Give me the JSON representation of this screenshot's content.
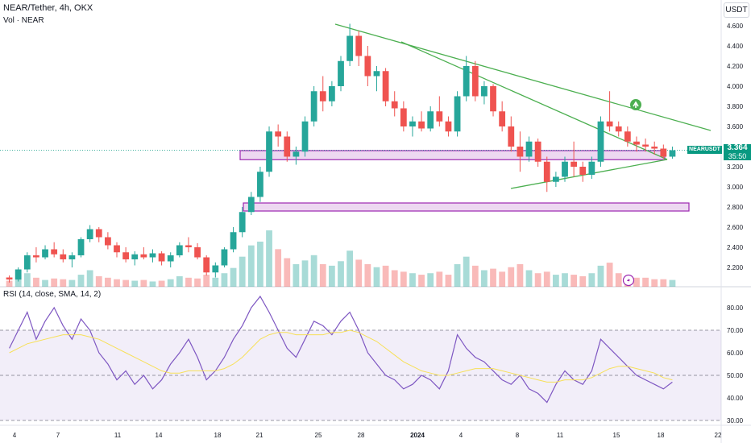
{
  "header": {
    "title": "NEAR/Tether, 4h, OKX",
    "volume_label": "Vol · NEAR",
    "currency": "USDT",
    "rsi_label": "RSI (14, close, SMA, 14, 2)"
  },
  "price_tag": {
    "symbol": "NEARUSDT",
    "price": "3.364",
    "countdown": "35:50"
  },
  "chart_data": [
    {
      "type": "candlestick",
      "title": "NEAR/Tether, 4h, OKX",
      "ylabel": "USDT",
      "ylim": [
        2.0,
        4.7
      ],
      "yticks": [
        "4.600",
        "4.400",
        "4.200",
        "4.000",
        "3.800",
        "3.600",
        "3.400",
        "3.200",
        "3.000",
        "2.800",
        "2.600",
        "2.400",
        "2.200"
      ],
      "xticks": [
        "4",
        "7",
        "11",
        "14",
        "18",
        "21",
        "25",
        "28",
        "2024",
        "4",
        "8",
        "11",
        "15",
        "18",
        "22"
      ],
      "series": [
        {
          "kind": "candles",
          "values": [
            [
              2.1,
              2.12,
              2.05,
              2.08
            ],
            [
              2.08,
              2.2,
              2.06,
              2.18
            ],
            [
              2.18,
              2.35,
              2.15,
              2.32
            ],
            [
              2.32,
              2.4,
              2.25,
              2.3
            ],
            [
              2.3,
              2.42,
              2.28,
              2.38
            ],
            [
              2.38,
              2.45,
              2.3,
              2.33
            ],
            [
              2.33,
              2.38,
              2.25,
              2.28
            ],
            [
              2.28,
              2.35,
              2.2,
              2.32
            ],
            [
              2.32,
              2.5,
              2.3,
              2.48
            ],
            [
              2.48,
              2.62,
              2.45,
              2.58
            ],
            [
              2.58,
              2.6,
              2.45,
              2.5
            ],
            [
              2.5,
              2.55,
              2.38,
              2.42
            ],
            [
              2.42,
              2.45,
              2.3,
              2.35
            ],
            [
              2.35,
              2.4,
              2.25,
              2.28
            ],
            [
              2.28,
              2.36,
              2.22,
              2.33
            ],
            [
              2.33,
              2.4,
              2.28,
              2.3
            ],
            [
              2.3,
              2.38,
              2.25,
              2.34
            ],
            [
              2.34,
              2.36,
              2.22,
              2.26
            ],
            [
              2.26,
              2.35,
              2.2,
              2.32
            ],
            [
              2.32,
              2.45,
              2.3,
              2.42
            ],
            [
              2.42,
              2.5,
              2.35,
              2.4
            ],
            [
              2.4,
              2.44,
              2.28,
              2.3
            ],
            [
              2.3,
              2.32,
              2.12,
              2.15
            ],
            [
              2.15,
              2.25,
              2.1,
              2.22
            ],
            [
              2.22,
              2.4,
              2.2,
              2.38
            ],
            [
              2.38,
              2.6,
              2.35,
              2.55
            ],
            [
              2.55,
              2.8,
              2.5,
              2.75
            ],
            [
              2.75,
              2.95,
              2.72,
              2.9
            ],
            [
              2.9,
              3.2,
              2.85,
              3.15
            ],
            [
              3.15,
              3.6,
              3.1,
              3.55
            ],
            [
              3.55,
              3.62,
              3.4,
              3.5
            ],
            [
              3.5,
              3.55,
              3.25,
              3.3
            ],
            [
              3.3,
              3.4,
              3.22,
              3.35
            ],
            [
              3.35,
              3.7,
              3.3,
              3.65
            ],
            [
              3.65,
              4.0,
              3.6,
              3.95
            ],
            [
              3.95,
              4.1,
              3.75,
              3.85
            ],
            [
              3.85,
              4.05,
              3.8,
              4.0
            ],
            [
              4.0,
              4.3,
              3.95,
              4.25
            ],
            [
              4.25,
              4.62,
              4.2,
              4.5
            ],
            [
              4.5,
              4.55,
              4.2,
              4.3
            ],
            [
              4.3,
              4.4,
              4.0,
              4.1
            ],
            [
              4.1,
              4.2,
              3.95,
              4.15
            ],
            [
              4.15,
              4.18,
              3.8,
              3.85
            ],
            [
              3.85,
              3.95,
              3.7,
              3.78
            ],
            [
              3.78,
              3.85,
              3.55,
              3.6
            ],
            [
              3.6,
              3.7,
              3.5,
              3.65
            ],
            [
              3.65,
              3.75,
              3.55,
              3.58
            ],
            [
              3.58,
              3.8,
              3.55,
              3.75
            ],
            [
              3.75,
              3.9,
              3.6,
              3.65
            ],
            [
              3.65,
              3.7,
              3.5,
              3.55
            ],
            [
              3.55,
              3.95,
              3.5,
              3.9
            ],
            [
              3.9,
              4.3,
              3.85,
              4.2
            ],
            [
              4.2,
              4.25,
              3.85,
              3.9
            ],
            [
              3.9,
              4.05,
              3.82,
              4.0
            ],
            [
              4.0,
              4.02,
              3.7,
              3.75
            ],
            [
              3.75,
              3.85,
              3.55,
              3.6
            ],
            [
              3.6,
              3.7,
              3.35,
              3.4
            ],
            [
              3.4,
              3.55,
              3.15,
              3.3
            ],
            [
              3.3,
              3.5,
              3.25,
              3.45
            ],
            [
              3.45,
              3.48,
              3.2,
              3.25
            ],
            [
              3.25,
              3.3,
              2.95,
              3.05
            ],
            [
              3.05,
              3.15,
              3.0,
              3.1
            ],
            [
              3.1,
              3.3,
              3.05,
              3.25
            ],
            [
              3.25,
              3.45,
              3.1,
              3.2
            ],
            [
              3.2,
              3.25,
              3.05,
              3.12
            ],
            [
              3.12,
              3.3,
              3.08,
              3.25
            ],
            [
              3.25,
              3.7,
              3.2,
              3.65
            ],
            [
              3.65,
              3.95,
              3.55,
              3.6
            ],
            [
              3.6,
              3.65,
              3.5,
              3.55
            ],
            [
              3.55,
              3.6,
              3.4,
              3.45
            ],
            [
              3.45,
              3.5,
              3.35,
              3.42
            ],
            [
              3.42,
              3.48,
              3.35,
              3.4
            ],
            [
              3.4,
              3.45,
              3.32,
              3.38
            ],
            [
              3.38,
              3.42,
              3.28,
              3.3
            ],
            [
              3.3,
              3.4,
              3.28,
              3.364
            ]
          ]
        },
        {
          "kind": "volume",
          "values": [
            8,
            10,
            18,
            12,
            9,
            11,
            10,
            9,
            16,
            22,
            14,
            12,
            10,
            9,
            8,
            9,
            7,
            8,
            10,
            14,
            12,
            11,
            16,
            12,
            18,
            25,
            40,
            55,
            60,
            75,
            50,
            38,
            30,
            35,
            42,
            30,
            28,
            34,
            48,
            36,
            30,
            26,
            28,
            22,
            20,
            18,
            16,
            18,
            20,
            16,
            30,
            40,
            28,
            22,
            24,
            20,
            26,
            30,
            22,
            18,
            20,
            16,
            18,
            16,
            14,
            18,
            28,
            32,
            18,
            14,
            12,
            12,
            10,
            10,
            9
          ]
        }
      ],
      "support_zones": [
        [
          3.27,
          3.36
        ],
        [
          2.76,
          2.84
        ]
      ],
      "trendlines": [
        "upper resistance from 4.6 high",
        "descending resistance",
        "ascending support"
      ]
    },
    {
      "type": "line",
      "title": "RSI (14, close, SMA, 14, 2)",
      "ylim": [
        30,
        85
      ],
      "yticks": [
        "80.00",
        "70.00",
        "60.00",
        "50.00",
        "40.00",
        "30.00"
      ],
      "bands": [
        30,
        50,
        70
      ],
      "series": [
        {
          "name": "RSI",
          "values": [
            62,
            70,
            78,
            66,
            74,
            80,
            72,
            66,
            75,
            70,
            60,
            55,
            48,
            52,
            46,
            50,
            44,
            48,
            55,
            60,
            66,
            58,
            48,
            52,
            58,
            66,
            72,
            80,
            85,
            78,
            70,
            62,
            58,
            66,
            74,
            72,
            68,
            74,
            78,
            70,
            60,
            55,
            50,
            48,
            44,
            46,
            50,
            48,
            44,
            52,
            68,
            62,
            58,
            56,
            52,
            48,
            46,
            50,
            44,
            42,
            38,
            46,
            52,
            48,
            46,
            52,
            66,
            62,
            58,
            54,
            50,
            48,
            46,
            44,
            47
          ]
        },
        {
          "name": "RSI-based MA",
          "values": [
            60,
            62,
            64,
            65,
            66,
            67,
            68,
            68,
            68,
            67,
            66,
            64,
            62,
            60,
            58,
            56,
            54,
            52,
            51,
            51,
            52,
            52,
            52,
            52,
            53,
            55,
            58,
            62,
            66,
            68,
            69,
            69,
            68,
            68,
            68,
            68,
            69,
            69,
            70,
            69,
            67,
            65,
            62,
            59,
            56,
            54,
            52,
            51,
            50,
            50,
            51,
            52,
            53,
            53,
            53,
            52,
            51,
            50,
            49,
            48,
            47,
            47,
            48,
            48,
            48,
            49,
            51,
            53,
            54,
            54,
            53,
            52,
            51,
            49,
            48
          ]
        }
      ]
    }
  ]
}
